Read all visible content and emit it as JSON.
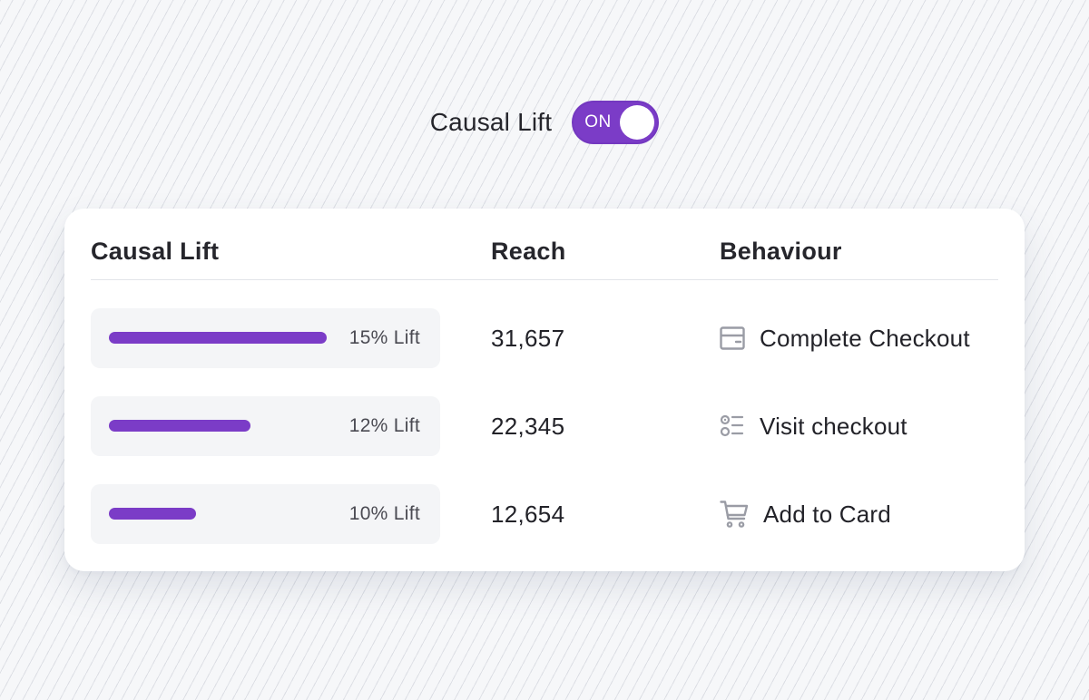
{
  "toggle": {
    "label": "Causal Lift",
    "state_text": "ON",
    "is_on": true,
    "accent_color": "#7b3cc7"
  },
  "table": {
    "headers": {
      "lift": "Causal Lift",
      "reach": "Reach",
      "behaviour": "Behaviour"
    },
    "rows": [
      {
        "lift_label": "15% Lift",
        "lift_fraction": 1.0,
        "reach": "31,657",
        "behaviour": "Complete Checkout",
        "icon": "checkout-card-icon"
      },
      {
        "lift_label": "12% Lift",
        "lift_fraction": 0.65,
        "reach": "22,345",
        "behaviour": "Visit checkout",
        "icon": "list-icon"
      },
      {
        "lift_label": "10% Lift",
        "lift_fraction": 0.4,
        "reach": "12,654",
        "behaviour": "Add to Card",
        "icon": "cart-icon"
      }
    ]
  },
  "colors": {
    "bar": "#7b3cc7",
    "icon": "#9a9ca5"
  }
}
